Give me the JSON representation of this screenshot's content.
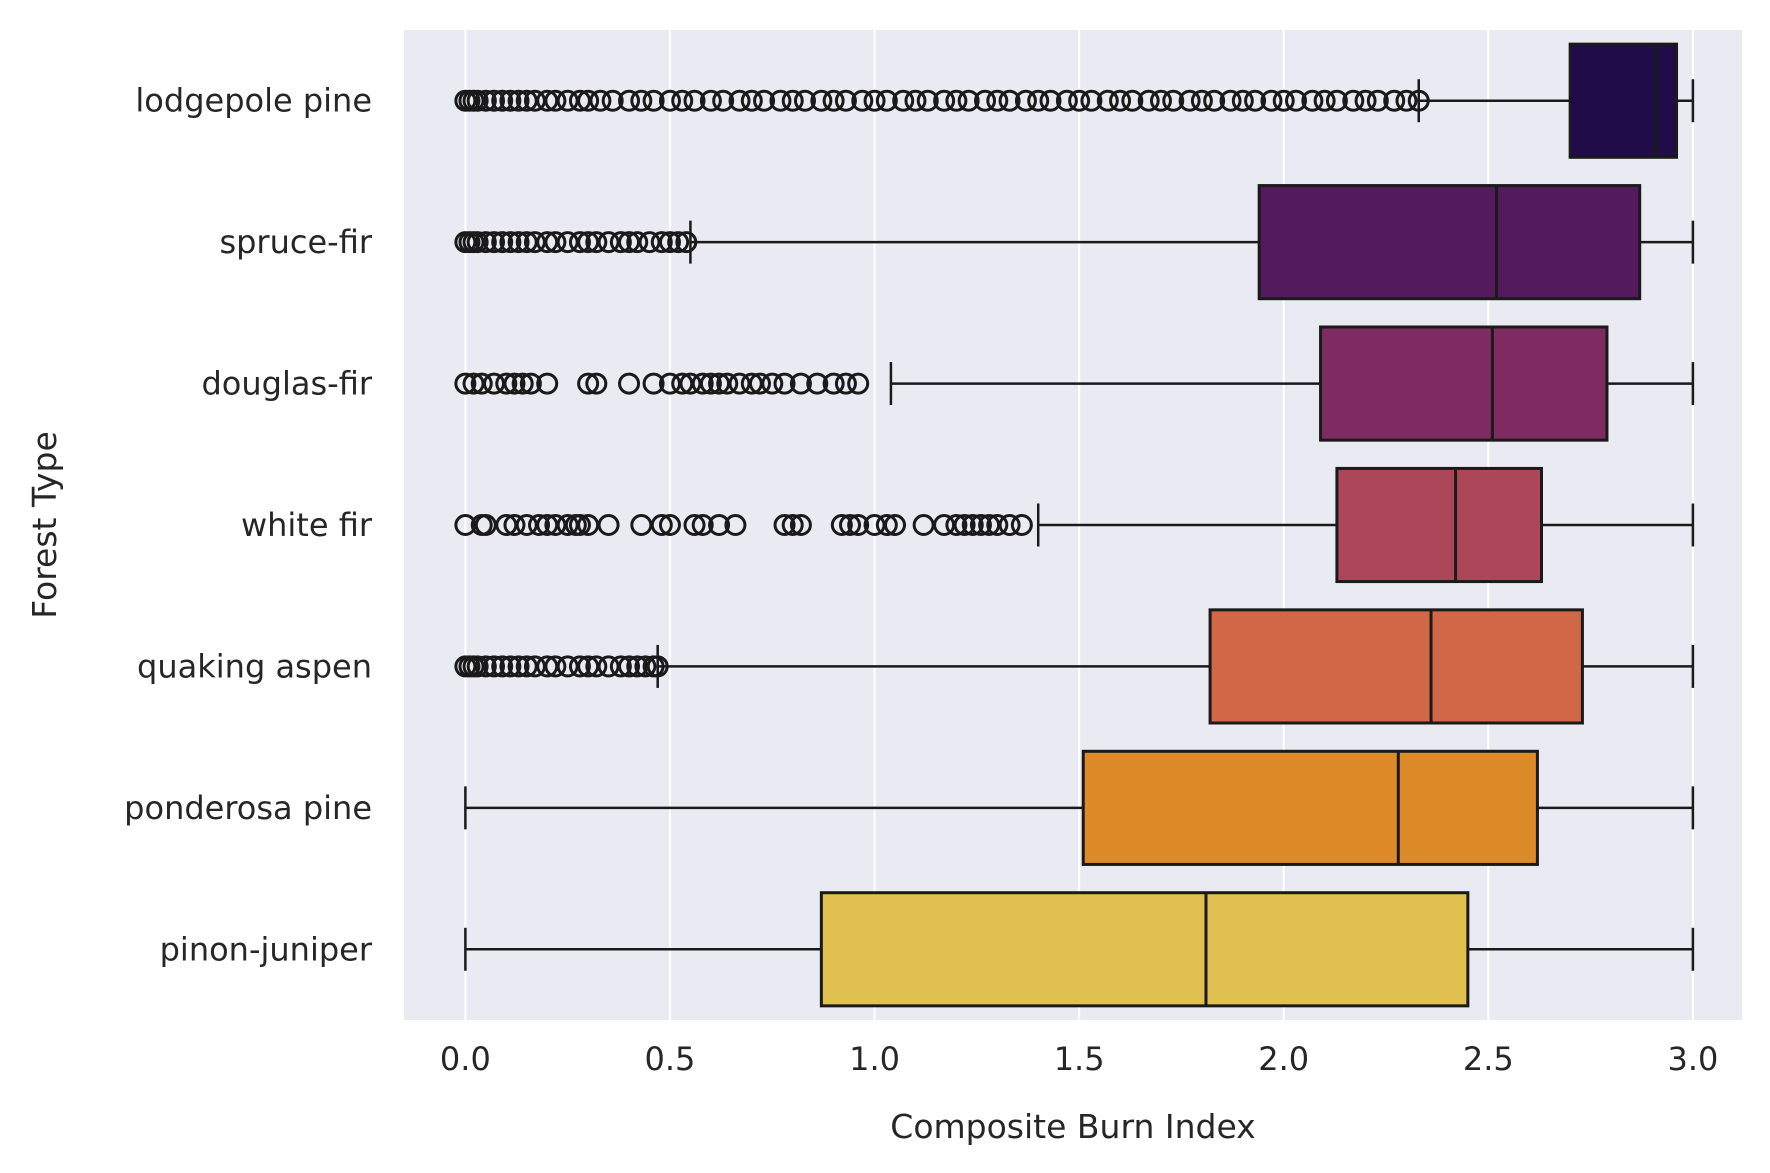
{
  "chart_data": {
    "type": "boxplot",
    "orientation": "horizontal",
    "xlabel": "Composite Burn Index",
    "ylabel": "Forest Type",
    "xlim": [
      -0.15,
      3.12
    ],
    "xticks": [
      "0.0",
      "0.5",
      "1.0",
      "1.5",
      "2.0",
      "2.5",
      "3.0"
    ],
    "grid": true,
    "background": "#eaeaf2",
    "categories": [
      "lodgepole pine",
      "spruce-fir",
      "douglas-fir",
      "white fir",
      "quaking aspen",
      "ponderosa pine",
      "pinon-juniper"
    ],
    "boxes": [
      {
        "category": "lodgepole pine",
        "color": "#1f0c48",
        "whisker_low": 2.33,
        "q1": 2.7,
        "median": 2.91,
        "q3": 2.96,
        "whisker_high": 3.0,
        "outliers": [
          0.0,
          0.01,
          0.02,
          0.03,
          0.05,
          0.07,
          0.09,
          0.11,
          0.13,
          0.15,
          0.17,
          0.2,
          0.22,
          0.25,
          0.28,
          0.3,
          0.33,
          0.36,
          0.4,
          0.43,
          0.46,
          0.5,
          0.53,
          0.56,
          0.6,
          0.63,
          0.67,
          0.7,
          0.73,
          0.77,
          0.8,
          0.83,
          0.87,
          0.9,
          0.93,
          0.97,
          1.0,
          1.03,
          1.07,
          1.1,
          1.13,
          1.17,
          1.2,
          1.23,
          1.27,
          1.3,
          1.33,
          1.37,
          1.4,
          1.43,
          1.47,
          1.5,
          1.53,
          1.57,
          1.6,
          1.63,
          1.67,
          1.7,
          1.73,
          1.77,
          1.8,
          1.83,
          1.87,
          1.9,
          1.93,
          1.97,
          2.0,
          2.03,
          2.07,
          2.1,
          2.13,
          2.17,
          2.2,
          2.23,
          2.27,
          2.3,
          2.33
        ]
      },
      {
        "category": "spruce-fir",
        "color": "#541a5e",
        "whisker_low": 0.55,
        "q1": 1.94,
        "median": 2.52,
        "q3": 2.87,
        "whisker_high": 3.0,
        "outliers": [
          0.0,
          0.01,
          0.02,
          0.03,
          0.05,
          0.07,
          0.09,
          0.11,
          0.13,
          0.15,
          0.17,
          0.2,
          0.22,
          0.25,
          0.28,
          0.3,
          0.32,
          0.35,
          0.38,
          0.4,
          0.42,
          0.45,
          0.48,
          0.5,
          0.52,
          0.54
        ]
      },
      {
        "category": "douglas-fir",
        "color": "#7d2b61",
        "whisker_low": 1.04,
        "q1": 2.09,
        "median": 2.51,
        "q3": 2.79,
        "whisker_high": 3.0,
        "outliers": [
          0.0,
          0.02,
          0.04,
          0.07,
          0.1,
          0.12,
          0.14,
          0.16,
          0.2,
          0.3,
          0.32,
          0.4,
          0.46,
          0.5,
          0.53,
          0.55,
          0.58,
          0.6,
          0.62,
          0.64,
          0.67,
          0.7,
          0.72,
          0.75,
          0.78,
          0.82,
          0.86,
          0.9,
          0.93,
          0.96
        ]
      },
      {
        "category": "white fir",
        "color": "#ac475a",
        "whisker_low": 1.4,
        "q1": 2.13,
        "median": 2.42,
        "q3": 2.63,
        "whisker_high": 3.0,
        "outliers": [
          0.0,
          0.04,
          0.05,
          0.1,
          0.12,
          0.15,
          0.18,
          0.2,
          0.22,
          0.25,
          0.27,
          0.28,
          0.3,
          0.35,
          0.43,
          0.48,
          0.5,
          0.56,
          0.58,
          0.62,
          0.66,
          0.78,
          0.8,
          0.82,
          0.92,
          0.94,
          0.96,
          1.0,
          1.03,
          1.05,
          1.12,
          1.17,
          1.2,
          1.22,
          1.24,
          1.26,
          1.28,
          1.3,
          1.33,
          1.36
        ]
      },
      {
        "category": "quaking aspen",
        "color": "#d06848",
        "whisker_low": 0.47,
        "q1": 1.82,
        "median": 2.36,
        "q3": 2.73,
        "whisker_high": 3.0,
        "outliers": [
          0.0,
          0.01,
          0.02,
          0.03,
          0.05,
          0.07,
          0.09,
          0.11,
          0.13,
          0.15,
          0.17,
          0.2,
          0.22,
          0.25,
          0.28,
          0.3,
          0.32,
          0.35,
          0.38,
          0.4,
          0.42,
          0.44,
          0.46,
          0.47
        ]
      },
      {
        "category": "ponderosa pine",
        "color": "#dd8a28",
        "whisker_low": 0.0,
        "q1": 1.51,
        "median": 2.28,
        "q3": 2.62,
        "whisker_high": 3.0,
        "outliers": []
      },
      {
        "category": "pinon-juniper",
        "color": "#e0c04e",
        "whisker_low": 0.0,
        "q1": 0.87,
        "median": 1.81,
        "q3": 2.45,
        "whisker_high": 3.0,
        "outliers": []
      }
    ]
  }
}
